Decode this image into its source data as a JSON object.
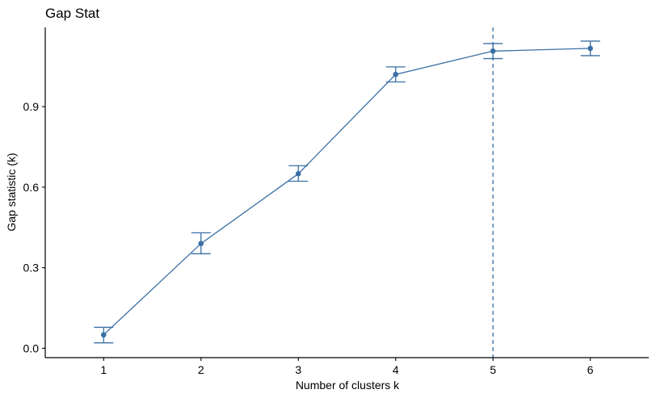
{
  "chart_data": {
    "type": "line",
    "title": "Gap Stat",
    "xlabel": "Number of clusters k",
    "ylabel": "Gap statistic (k)",
    "x": [
      1,
      2,
      3,
      4,
      5,
      6
    ],
    "xlim": [
      0.4,
      6.6
    ],
    "ylim": [
      -0.035,
      1.195
    ],
    "yticks": [
      0.0,
      0.3,
      0.6,
      0.9
    ],
    "ytick_labels": [
      "0.0",
      "0.3",
      "0.6",
      "0.9"
    ],
    "xtick_labels": [
      "1",
      "2",
      "3",
      "4",
      "5",
      "6"
    ],
    "series": [
      {
        "values": [
          0.05,
          0.39,
          0.65,
          1.02,
          1.107,
          1.117
        ],
        "error_low": [
          0.02,
          0.352,
          0.622,
          0.992,
          1.079,
          1.09
        ],
        "error_high": [
          0.078,
          0.43,
          0.68,
          1.048,
          1.135,
          1.144
        ],
        "color": "#3a6fa5"
      }
    ],
    "optimal_k": 5,
    "reference_line_color": "#5a86b0",
    "grid": false,
    "legend": "none"
  }
}
